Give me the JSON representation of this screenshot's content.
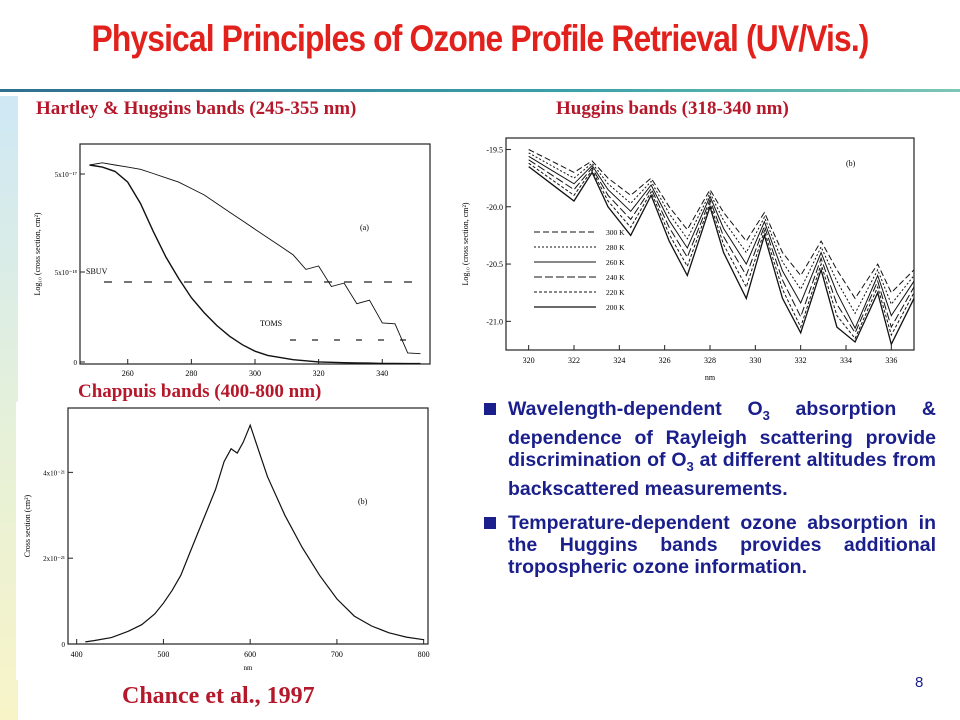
{
  "title": "Physical Principles of Ozone Profile Retrieval (UV/Vis.)",
  "headers": {
    "hartley": "Hartley & Huggins bands (245-355 nm)",
    "huggins": "Huggins bands (318-340 nm)",
    "chappuis": "Chappuis bands (400-800 nm)"
  },
  "bullets": [
    {
      "pre": "Wavelength-dependent O",
      "sub": "3",
      "post": " absorption & dependence of Rayleigh scattering provide discrimination of O",
      "sub2": "3",
      "post2": " at different altitudes from backscattered measurements."
    },
    {
      "pre": "Temperature-dependent ozone absorption in the Huggins bands provides additional tropospheric ozone information.",
      "sub": "",
      "post": "",
      "sub2": "",
      "post2": ""
    }
  ],
  "citation": "Chance et al., 1997",
  "page_number": "8",
  "colors": {
    "title": "#e2211c",
    "header": "#b5182a",
    "bullet_text": "#1a1f8c"
  },
  "chart_data": [
    {
      "type": "line",
      "panel_label": "(a)",
      "ylabel": "Log₁₀ (cross section, cm²)",
      "xlabel": "",
      "xlim": [
        245,
        355
      ],
      "x_ticks": [
        "260",
        "280",
        "300",
        "320",
        "340"
      ],
      "y_ticks": [
        "5x10⁻¹⁷",
        "5x10⁻¹⁸",
        "0"
      ],
      "annotations": [
        "SBUV",
        "TOMS"
      ],
      "series": [
        {
          "x": [
            248,
            252,
            256,
            260,
            264,
            268,
            272,
            276,
            280,
            284,
            288,
            292,
            296,
            300,
            304,
            308,
            312,
            316,
            320,
            324,
            328,
            332,
            336,
            340,
            344,
            348,
            352
          ],
          "y": [
            0.93,
            0.94,
            0.93,
            0.92,
            0.91,
            0.89,
            0.87,
            0.85,
            0.82,
            0.79,
            0.75,
            0.71,
            0.67,
            0.63,
            0.59,
            0.55,
            0.51,
            0.47,
            0.43,
            0.39,
            0.35,
            0.31,
            0.27,
            0.22,
            0.16,
            0.08,
            0.02
          ]
        },
        {
          "x": [
            248,
            252,
            256,
            260,
            264,
            268,
            272,
            276,
            280,
            284,
            288,
            292,
            296,
            300,
            304,
            308,
            312,
            316,
            320,
            324,
            328,
            332,
            336,
            340,
            344,
            348,
            352
          ],
          "y": [
            0.93,
            0.92,
            0.9,
            0.85,
            0.75,
            0.62,
            0.5,
            0.4,
            0.31,
            0.24,
            0.18,
            0.13,
            0.09,
            0.06,
            0.04,
            0.03,
            0.02,
            0.015,
            0.01,
            0.008,
            0.006,
            0.005,
            0.004,
            0.003,
            0.003,
            0.002,
            0.002
          ]
        }
      ]
    },
    {
      "type": "line",
      "panel_label": "(b)",
      "ylabel": "Log₁₀ (cross section, cm²)",
      "xlabel": "nm",
      "xlim": [
        319,
        337
      ],
      "ylim": [
        -21.25,
        -19.4
      ],
      "x_ticks": [
        "320",
        "322",
        "324",
        "326",
        "328",
        "330",
        "332",
        "334",
        "336"
      ],
      "y_ticks": [
        "-19.5",
        "-20.0",
        "-20.5",
        "-21.0"
      ],
      "legend": [
        "300 K",
        "280 K",
        "260 K",
        "240 K",
        "220 K",
        "200 K"
      ],
      "series": [
        {
          "name": "300 K",
          "x": [
            320,
            321,
            322,
            322.8,
            323.5,
            324.5,
            325.4,
            326.2,
            327,
            328,
            328.6,
            329.6,
            330.4,
            331.2,
            332,
            332.9,
            333.6,
            334.4,
            335.4,
            336,
            337
          ],
          "y": [
            -19.5,
            -19.6,
            -19.7,
            -19.6,
            -19.75,
            -19.9,
            -19.75,
            -20.0,
            -20.2,
            -19.85,
            -20.05,
            -20.3,
            -20.05,
            -20.4,
            -20.6,
            -20.3,
            -20.55,
            -20.8,
            -20.5,
            -20.75,
            -20.55
          ]
        },
        {
          "name": "280 K",
          "x": [
            320,
            321,
            322,
            322.8,
            323.5,
            324.5,
            325.4,
            326.2,
            327,
            328,
            328.6,
            329.6,
            330.4,
            331.2,
            332,
            332.9,
            333.6,
            334.4,
            335.4,
            336,
            337
          ],
          "y": [
            -19.53,
            -19.64,
            -19.75,
            -19.62,
            -19.8,
            -19.97,
            -19.78,
            -20.06,
            -20.28,
            -19.88,
            -20.12,
            -20.4,
            -20.09,
            -20.48,
            -20.72,
            -20.35,
            -20.65,
            -20.93,
            -20.55,
            -20.85,
            -20.6
          ]
        },
        {
          "name": "260 K",
          "x": [
            320,
            321,
            322,
            322.8,
            323.5,
            324.5,
            325.4,
            326.2,
            327,
            328,
            328.6,
            329.6,
            330.4,
            331.2,
            332,
            332.9,
            333.6,
            334.4,
            335.4,
            336,
            337
          ],
          "y": [
            -19.56,
            -19.68,
            -19.8,
            -19.64,
            -19.85,
            -20.04,
            -19.81,
            -20.12,
            -20.36,
            -19.91,
            -20.19,
            -20.5,
            -20.13,
            -20.56,
            -20.84,
            -20.4,
            -20.75,
            -21.06,
            -20.6,
            -20.95,
            -20.65
          ]
        },
        {
          "name": "240 K",
          "x": [
            320,
            321,
            322,
            322.8,
            323.5,
            324.5,
            325.4,
            326.2,
            327,
            328,
            328.6,
            329.6,
            330.4,
            331.2,
            332,
            332.9,
            333.6,
            334.4,
            335.4,
            336,
            337
          ],
          "y": [
            -19.59,
            -19.72,
            -19.85,
            -19.66,
            -19.9,
            -20.11,
            -19.84,
            -20.18,
            -20.44,
            -19.94,
            -20.26,
            -20.6,
            -20.17,
            -20.64,
            -20.96,
            -20.45,
            -20.85,
            -21.1,
            -20.65,
            -21.05,
            -20.7
          ]
        },
        {
          "name": "220 K",
          "x": [
            320,
            321,
            322,
            322.8,
            323.5,
            324.5,
            325.4,
            326.2,
            327,
            328,
            328.6,
            329.6,
            330.4,
            331.2,
            332,
            332.9,
            333.6,
            334.4,
            335.4,
            336,
            337
          ],
          "y": [
            -19.62,
            -19.76,
            -19.9,
            -19.68,
            -19.95,
            -20.18,
            -19.87,
            -20.24,
            -20.52,
            -19.97,
            -20.33,
            -20.7,
            -20.21,
            -20.72,
            -21.05,
            -20.5,
            -20.95,
            -21.15,
            -20.7,
            -21.12,
            -20.75
          ]
        },
        {
          "name": "200 K",
          "x": [
            320,
            321,
            322,
            322.8,
            323.5,
            324.5,
            325.4,
            326.2,
            327,
            328,
            328.6,
            329.6,
            330.4,
            331.2,
            332,
            332.9,
            333.6,
            334.4,
            335.4,
            336,
            337
          ],
          "y": [
            -19.65,
            -19.8,
            -19.95,
            -19.7,
            -20.0,
            -20.25,
            -19.9,
            -20.3,
            -20.6,
            -20.0,
            -20.4,
            -20.8,
            -20.25,
            -20.8,
            -21.1,
            -20.55,
            -21.05,
            -21.18,
            -20.75,
            -21.2,
            -20.8
          ]
        }
      ]
    },
    {
      "type": "line",
      "panel_label": "(b)",
      "ylabel": "Cross section (cm²)",
      "xlabel": "nm",
      "xlim": [
        390,
        805
      ],
      "ylim": [
        0,
        5.5e-21
      ],
      "x_ticks": [
        "400",
        "500",
        "600",
        "700",
        "800"
      ],
      "y_ticks": [
        "4x10⁻²¹",
        "2x10⁻²¹",
        "0"
      ],
      "series": [
        {
          "x": [
            410,
            420,
            440,
            460,
            475,
            490,
            500,
            510,
            520,
            530,
            540,
            550,
            560,
            570,
            578,
            585,
            592,
            600,
            610,
            620,
            640,
            660,
            680,
            700,
            720,
            740,
            760,
            780,
            800
          ],
          "y": [
            5e-23,
            8e-23,
            1.5e-22,
            3e-22,
            4.5e-22,
            7e-22,
            9.5e-22,
            1.25e-21,
            1.6e-21,
            2.1e-21,
            2.6e-21,
            3.1e-21,
            3.6e-21,
            4.25e-21,
            4.55e-21,
            4.45e-21,
            4.7e-21,
            5.1e-21,
            4.5e-21,
            3.9e-21,
            3e-21,
            2.25e-21,
            1.6e-21,
            1.05e-21,
            6.5e-22,
            4.2e-22,
            2.6e-22,
            1.6e-22,
            1e-22
          ]
        }
      ]
    }
  ]
}
